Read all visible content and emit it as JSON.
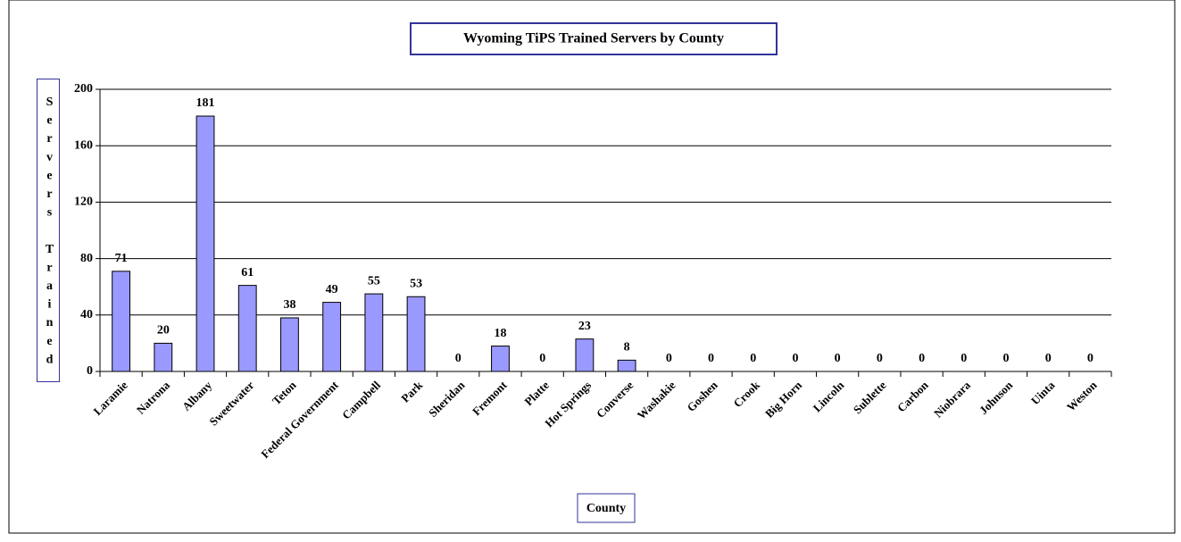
{
  "chart_data": {
    "type": "bar",
    "title": "Wyoming TiPS Trained Servers by County",
    "x_label": "County",
    "y_label": "Servers Trained",
    "categories": [
      "Laramie",
      "Natrona",
      "Albany",
      "Sweetwater",
      "Teton",
      "Federal Government",
      "Campbell",
      "Park",
      "Sheridan",
      "Fremont",
      "Platte",
      "Hot Springs",
      "Converse",
      "Washakie",
      "Goshen",
      "Crook",
      "Big Horn",
      "Lincoln",
      "Sublette",
      "Carbon",
      "Niobrara",
      "Johnson",
      "Uinta",
      "Weston"
    ],
    "values": [
      71,
      20,
      181,
      61,
      38,
      49,
      55,
      53,
      0,
      18,
      0,
      23,
      8,
      0,
      0,
      0,
      0,
      0,
      0,
      0,
      0,
      0,
      0,
      0
    ],
    "color": "#9999ff",
    "ylim": [
      0,
      200
    ],
    "yticks": [
      0,
      40,
      80,
      120,
      160,
      200
    ],
    "grid": true
  }
}
